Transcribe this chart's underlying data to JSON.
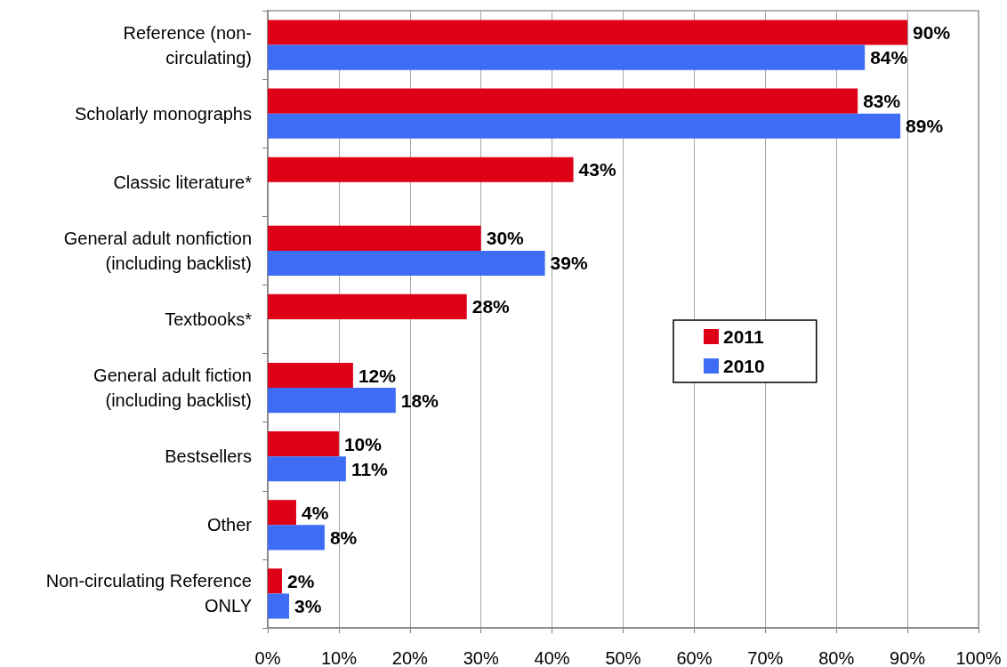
{
  "chart_data": {
    "type": "bar",
    "orientation": "horizontal",
    "categories": [
      "Reference (non-\ncirculating)",
      "Scholarly monographs",
      "Classic literature*",
      "General adult nonfiction\n(including backlist)",
      "Textbooks*",
      "General adult fiction\n(including backlist)",
      "Bestsellers",
      "Other",
      "Non-circulating Reference\nONLY"
    ],
    "series": [
      {
        "name": "2011",
        "color": "#de0016",
        "values": [
          90,
          83,
          43,
          30,
          28,
          12,
          10,
          4,
          2
        ],
        "value_labels": [
          "90%",
          "83%",
          "43%",
          "30%",
          "28%",
          "12%",
          "10%",
          "4%",
          "2%"
        ]
      },
      {
        "name": "2010",
        "color": "#3e6cf4",
        "values": [
          84,
          89,
          null,
          39,
          null,
          18,
          11,
          8,
          3
        ],
        "value_labels": [
          "84%",
          "89%",
          null,
          "39%",
          null,
          "18%",
          "11%",
          "8%",
          "3%"
        ]
      }
    ],
    "xlim": [
      0,
      100
    ],
    "xticks": [
      {
        "value": 0,
        "label": "0%"
      },
      {
        "value": 10,
        "label": "10%"
      },
      {
        "value": 20,
        "label": "20%"
      },
      {
        "value": 30,
        "label": "30%"
      },
      {
        "value": 40,
        "label": "40%"
      },
      {
        "value": 50,
        "label": "50%"
      },
      {
        "value": 60,
        "label": "60%"
      },
      {
        "value": 70,
        "label": "70%"
      },
      {
        "value": 80,
        "label": "80%"
      },
      {
        "value": 90,
        "label": "90%"
      },
      {
        "value": 100,
        "label": "100%"
      }
    ],
    "grid": "x",
    "legend": "right"
  }
}
